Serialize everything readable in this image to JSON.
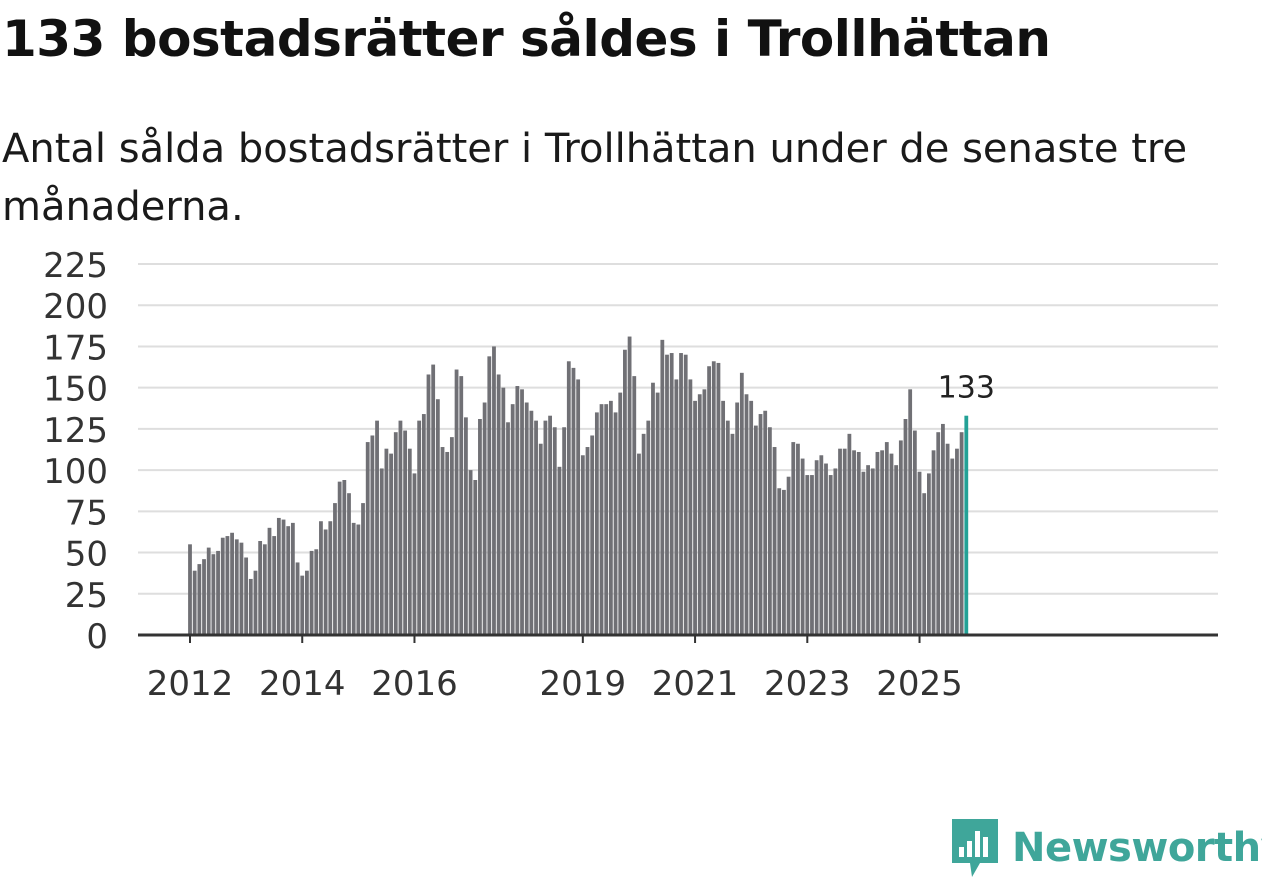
{
  "header": {
    "title": "133 bostadsrätter såldes i Trollhättan",
    "subtitle": "Antal sålda bostadsrätter i Trollhättan under de senaste tre månaderna."
  },
  "colors": {
    "bar": "#707075",
    "highlight": "#23a196",
    "grid": "#dedede",
    "axis": "#333333",
    "text": "#333333",
    "brand": "#3fa69a"
  },
  "brand": {
    "name": "Newsworthy",
    "icon": "newsworthy-logo-icon"
  },
  "chart_data": {
    "type": "bar",
    "title": "133 bostadsrätter såldes i Trollhättan",
    "subtitle": "Antal sålda bostadsrätter i Trollhättan under de senaste tre månaderna.",
    "xlabel": "",
    "ylabel": "",
    "ylim": [
      0,
      225
    ],
    "yticks": [
      "0",
      "25",
      "50",
      "75",
      "100",
      "125",
      "150",
      "175",
      "200",
      "225"
    ],
    "grid": true,
    "start": "2012-01",
    "xticks": [
      {
        "label": "2012",
        "index": 0
      },
      {
        "label": "2014",
        "index": 24
      },
      {
        "label": "2016",
        "index": 48
      },
      {
        "label": "2019",
        "index": 84
      },
      {
        "label": "2021",
        "index": 108
      },
      {
        "label": "2023",
        "index": 132
      },
      {
        "label": "2025",
        "index": 156
      }
    ],
    "highlight_label": "133",
    "values": [
      55,
      39,
      43,
      46,
      53,
      49,
      51,
      59,
      60,
      62,
      58,
      56,
      47,
      34,
      39,
      57,
      55,
      65,
      60,
      71,
      70,
      66,
      68,
      44,
      36,
      39,
      51,
      52,
      69,
      64,
      69,
      80,
      93,
      94,
      86,
      68,
      67,
      80,
      117,
      121,
      130,
      101,
      113,
      110,
      123,
      130,
      124,
      113,
      98,
      130,
      134,
      158,
      164,
      143,
      114,
      111,
      120,
      161,
      157,
      132,
      100,
      94,
      131,
      141,
      169,
      175,
      158,
      150,
      129,
      140,
      151,
      149,
      141,
      136,
      130,
      116,
      130,
      133,
      126,
      102,
      126,
      166,
      162,
      155,
      109,
      114,
      121,
      135,
      140,
      140,
      142,
      135,
      147,
      173,
      181,
      157,
      110,
      122,
      130,
      153,
      147,
      179,
      170,
      171,
      155,
      171,
      170,
      155,
      142,
      146,
      149,
      163,
      166,
      165,
      142,
      130,
      122,
      141,
      159,
      146,
      142,
      127,
      134,
      136,
      126,
      114,
      89,
      88,
      96,
      117,
      116,
      107,
      97,
      97,
      106,
      109,
      104,
      97,
      101,
      113,
      113,
      122,
      112,
      111,
      99,
      103,
      101,
      111,
      112,
      117,
      110,
      103,
      118,
      131,
      149,
      124,
      99,
      86,
      98,
      112,
      123,
      128,
      116,
      107,
      113,
      123,
      133
    ]
  }
}
